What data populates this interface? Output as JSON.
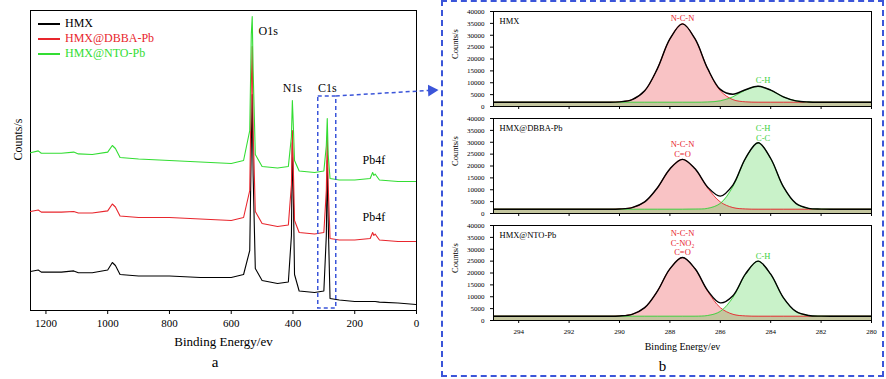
{
  "chart_data": [
    {
      "type": "line",
      "panel": "a",
      "xlabel": "Binding Energy/ev",
      "ylabel": "Counts/s",
      "x": [
        1250,
        1225,
        1215,
        1150,
        1110,
        1095,
        1050,
        1000,
        985,
        975,
        960,
        900,
        800,
        700,
        600,
        560,
        540,
        535,
        532,
        529,
        522,
        500,
        450,
        415,
        405,
        402,
        399,
        395,
        380,
        330,
        300,
        292,
        289,
        286,
        280,
        250,
        200,
        150,
        142,
        138,
        134,
        120,
        60,
        0
      ],
      "series": [
        {
          "name": "HMX",
          "color": "#000000",
          "values": [
            13,
            13.5,
            12.8,
            12.8,
            13.2,
            12.6,
            12.6,
            13.5,
            16,
            15,
            12,
            11.5,
            11.5,
            11,
            11,
            12,
            20,
            55,
            72,
            45,
            14,
            10,
            9,
            9.5,
            25,
            56,
            40,
            12,
            6.5,
            6,
            6.5,
            25,
            50,
            30,
            4,
            3.5,
            3,
            3,
            3,
            3,
            3,
            2.8,
            2.5,
            2
          ]
        },
        {
          "name": "HMX@DBBA-Pb",
          "color": "#e8262d",
          "values": [
            33,
            33.5,
            32.8,
            32.8,
            33,
            32.5,
            32.5,
            33.2,
            35.5,
            34.5,
            31.5,
            31,
            31,
            30.5,
            30,
            31,
            40,
            75,
            88,
            60,
            33,
            29,
            28,
            28.5,
            42,
            60,
            48,
            30,
            26,
            25.5,
            26,
            40,
            58,
            42,
            24,
            23.5,
            23.5,
            24,
            26,
            25,
            25.5,
            23.5,
            23,
            23
          ]
        },
        {
          "name": "HMX@NTO-Pb",
          "color": "#33dd33",
          "values": [
            52.6,
            53.2,
            52.4,
            52.4,
            52.8,
            52.2,
            52,
            52.8,
            55,
            54,
            51,
            50.5,
            50,
            49.5,
            49,
            50,
            60,
            92,
            98,
            80,
            52,
            48,
            47.5,
            48,
            58,
            70,
            62,
            50,
            46.5,
            46,
            46.5,
            55,
            64,
            52,
            44,
            43.5,
            43.5,
            44,
            46,
            45,
            45.5,
            43.5,
            43,
            43
          ]
        }
      ],
      "xlim": [
        1250,
        0
      ],
      "ylim": [
        0,
        100
      ],
      "xticks": [
        1200,
        1000,
        800,
        600,
        400,
        200,
        0
      ],
      "tick_labels": "x",
      "legend": "top-left",
      "annotations": [
        {
          "text": "O1s",
          "x": 480,
          "y": 92
        },
        {
          "text": "N1s",
          "x": 402,
          "y": 73
        },
        {
          "text": "C1s",
          "x": 289,
          "y": 73
        },
        {
          "text": "Pb4f",
          "x": 138,
          "y": 49
        },
        {
          "text": "Pb4f",
          "x": 138,
          "y": 30
        }
      ]
    },
    {
      "type": "line",
      "title": "HMX",
      "ylabel": "Counts/s",
      "x": [
        295,
        294.5,
        294,
        293.5,
        293,
        292.5,
        292,
        291.5,
        291,
        290.5,
        290,
        289.5,
        289,
        288.5,
        288,
        287.5,
        287,
        286.5,
        286,
        285.5,
        285,
        284.5,
        284,
        283.5,
        283,
        282.5,
        282,
        281.5,
        281,
        280.5,
        280
      ],
      "series": [
        {
          "type": "area",
          "color": "#e8262d",
          "values": [
            1800,
            1800,
            1800,
            1800,
            1800,
            1800,
            1800,
            1800,
            1800,
            1800,
            1955,
            2890,
            6620,
            15830,
            28430,
            34800,
            28430,
            15830,
            6620,
            2890,
            1955,
            1800,
            1800,
            1800,
            1800,
            1800,
            1800,
            1800,
            1800,
            1800,
            1800
          ]
        },
        {
          "type": "area",
          "color": "#3ecf3e",
          "values": [
            1800,
            1800,
            1800,
            1800,
            1800,
            1800,
            1800,
            1800,
            1800,
            1800,
            1800,
            1800,
            1800,
            1800,
            1800,
            1800,
            1800,
            1890,
            2380,
            4070,
            6910,
            8500,
            6910,
            4070,
            2380,
            1890,
            1800,
            1800,
            1800,
            1800,
            1800
          ]
        },
        {
          "type": "line",
          "color": "#000000",
          "values": [
            1800,
            1800,
            1800,
            1800,
            1800,
            1800,
            1800,
            1800,
            1800,
            1800,
            1955,
            2890,
            6620,
            15830,
            28430,
            34800,
            28430,
            15920,
            7200,
            5160,
            7065,
            8500,
            6910,
            4070,
            2380,
            1890,
            1800,
            1800,
            1800,
            1800,
            1800
          ]
        }
      ],
      "xlim": [
        295,
        280
      ],
      "ylim": [
        0,
        40000
      ],
      "xticks": [
        294,
        292,
        290,
        288,
        286,
        284,
        282,
        280
      ],
      "yticks": [
        0,
        5000,
        10000,
        15000,
        20000,
        25000,
        30000,
        35000,
        40000
      ],
      "tick_labels": "y",
      "annotations": [
        {
          "text": [
            "N-C-N"
          ],
          "x": 287.5,
          "y": 36000,
          "color": "#e8262d"
        },
        {
          "text": [
            "C-H"
          ],
          "x": 284.3,
          "y": 9800,
          "color": "#3ecf3e"
        }
      ]
    },
    {
      "type": "line",
      "title": "HMX@DBBA-Pb",
      "ylabel": "Counts/s",
      "x": [
        295,
        294.5,
        294,
        293.5,
        293,
        292.5,
        292,
        291.5,
        291,
        290.5,
        290,
        289.5,
        289,
        288.5,
        288,
        287.5,
        287,
        286.5,
        286,
        285.5,
        285,
        284.5,
        284,
        283.5,
        283,
        282.5,
        282,
        281.5,
        281,
        280.5,
        280
      ],
      "series": [
        {
          "type": "area",
          "color": "#e8262d",
          "values": [
            1800,
            1800,
            1800,
            1800,
            1800,
            1800,
            1800,
            1800,
            1800,
            1800,
            1900,
            2490,
            4870,
            10730,
            18750,
            22800,
            18750,
            10730,
            4870,
            2490,
            1900,
            1800,
            1800,
            1800,
            1800,
            1800,
            1800,
            1800,
            1800,
            1800,
            1800
          ]
        },
        {
          "type": "area",
          "color": "#3ecf3e",
          "values": [
            1800,
            1800,
            1800,
            1800,
            1800,
            1800,
            1800,
            1800,
            1800,
            1800,
            1800,
            1800,
            1800,
            1800,
            1800,
            1800,
            1850,
            2160,
            4240,
            11290,
            23160,
            29800,
            23160,
            11290,
            4240,
            2160,
            1850,
            1800,
            1800,
            1800,
            1800
          ]
        },
        {
          "type": "line",
          "color": "#000000",
          "values": [
            1800,
            1800,
            1800,
            1800,
            1800,
            1800,
            1800,
            1800,
            1800,
            1800,
            1900,
            2490,
            4870,
            10730,
            18750,
            22800,
            18800,
            11090,
            7310,
            11980,
            23260,
            29800,
            23160,
            11290,
            4240,
            2160,
            1850,
            1800,
            1800,
            1800,
            1800
          ]
        }
      ],
      "xlim": [
        295,
        280
      ],
      "ylim": [
        0,
        40000
      ],
      "xticks": [
        294,
        292,
        290,
        288,
        286,
        284,
        282,
        280
      ],
      "yticks": [
        0,
        5000,
        10000,
        15000,
        20000,
        25000,
        30000,
        35000,
        40000
      ],
      "tick_labels": "y",
      "annotations": [
        {
          "text": [
            "N-C-N",
            "C=O"
          ],
          "x": 287.5,
          "y": 24000,
          "color": "#e8262d"
        },
        {
          "text": [
            "C-H",
            "C-C"
          ],
          "x": 284.3,
          "y": 30600,
          "color": "#3ecf3e"
        }
      ]
    },
    {
      "type": "line",
      "title": "HMX@NTO-Pb",
      "ylabel": "Counts/s",
      "xlabel": "Binding Energy/ev",
      "panel": "b",
      "x": [
        295,
        294.5,
        294,
        293.5,
        293,
        292.5,
        292,
        291.5,
        291,
        290.5,
        290,
        289.5,
        289,
        288.5,
        288,
        287.5,
        287,
        286.5,
        286,
        285.5,
        285,
        284.5,
        284,
        283.5,
        283,
        282.5,
        282,
        281.5,
        281,
        280.5,
        280
      ],
      "series": [
        {
          "type": "area",
          "color": "#e8262d",
          "values": [
            1800,
            1800,
            1800,
            1800,
            1800,
            1800,
            1800,
            1800,
            1800,
            1800,
            1920,
            2610,
            5410,
            12300,
            21730,
            26500,
            21730,
            12300,
            5410,
            2610,
            1920,
            1800,
            1800,
            1800,
            1800,
            1800,
            1800,
            1800,
            1800,
            1800,
            1800
          ]
        },
        {
          "type": "area",
          "color": "#3ecf3e",
          "values": [
            1800,
            1800,
            1800,
            1800,
            1800,
            1800,
            1800,
            1800,
            1800,
            1800,
            1800,
            1800,
            1800,
            1800,
            1800,
            1800,
            1800,
            2100,
            3820,
            9660,
            19500,
            25000,
            19500,
            9660,
            3820,
            2100,
            1840,
            1800,
            1800,
            1800,
            1800
          ]
        },
        {
          "type": "line",
          "color": "#000000",
          "values": [
            1800,
            1800,
            1800,
            1800,
            1800,
            1800,
            1800,
            1800,
            1800,
            1800,
            1920,
            2610,
            5410,
            12300,
            21730,
            26500,
            21770,
            12600,
            7430,
            10470,
            19620,
            25000,
            19500,
            9660,
            3820,
            2100,
            1840,
            1800,
            1800,
            1800,
            1800
          ]
        }
      ],
      "xlim": [
        295,
        280
      ],
      "ylim": [
        0,
        40000
      ],
      "xticks": [
        294,
        292,
        290,
        288,
        286,
        284,
        282,
        280
      ],
      "yticks": [
        0,
        5000,
        10000,
        15000,
        20000,
        25000,
        30000,
        35000,
        40000
      ],
      "annotations": [
        {
          "text": [
            "N-C-N",
            "C-NO₂",
            "C=O"
          ],
          "x": 287.5,
          "y": 27600,
          "color": "#e8262d"
        },
        {
          "text": [
            "C-H"
          ],
          "x": 284.3,
          "y": 26000,
          "color": "#3ecf3e"
        }
      ]
    }
  ]
}
